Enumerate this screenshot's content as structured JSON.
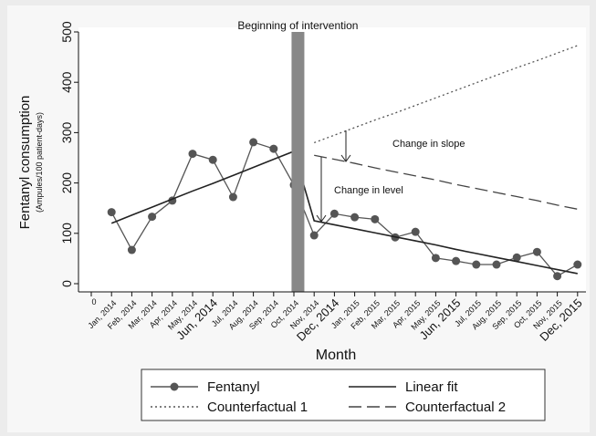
{
  "chart_data": {
    "type": "line",
    "y_label": "Fentanyl consumption",
    "y_sublabel": "(Ampules/100 patient-days)",
    "x_label": "Month",
    "categories": [
      "0",
      "Jan, 2014",
      "Feb, 2014",
      "Mar, 2014",
      "Apr, 2014",
      "May, 2014",
      "Jun, 2014",
      "Jul, 2014",
      "Aug, 2014",
      "Sep, 2014",
      "Oct, 2014",
      "Nov, 2014",
      "Dec, 2014",
      "Jan, 2015",
      "Feb, 2015",
      "Mar, 2015",
      "Apr, 2015",
      "May, 2015",
      "Jun, 2015",
      "Jul, 2015",
      "Aug, 2015",
      "Sep, 2015",
      "Oct, 2015",
      "Nov, 2015",
      "Dec, 2015"
    ],
    "series": [
      {
        "name": "Fentanyl",
        "color": "#555555",
        "style": "marker",
        "values": [
          null,
          142,
          67,
          133,
          165,
          258,
          246,
          172,
          281,
          268,
          196,
          96,
          139,
          132,
          128,
          92,
          103,
          51,
          45,
          38,
          38,
          52,
          63,
          15,
          38
        ]
      },
      {
        "name": "Linear fit",
        "color": "#222222",
        "style": "solid",
        "values": [
          null,
          120,
          136,
          152,
          168,
          184,
          199,
          215,
          231,
          247,
          263,
          125,
          117,
          109,
          101,
          93,
          85,
          77,
          68,
          60,
          52,
          44,
          36,
          28,
          20
        ]
      },
      {
        "name": "Counterfactual 1",
        "color": "#555555",
        "style": "dotted",
        "values": [
          null,
          null,
          null,
          null,
          null,
          null,
          null,
          null,
          null,
          null,
          null,
          280,
          295,
          310,
          325,
          339,
          354,
          369,
          384,
          399,
          414,
          429,
          443,
          458,
          473
        ]
      },
      {
        "name": "Counterfactual 2",
        "color": "#444444",
        "style": "dashed",
        "values": [
          null,
          null,
          null,
          null,
          null,
          null,
          null,
          null,
          null,
          null,
          null,
          255,
          247,
          239,
          230,
          222,
          214,
          206,
          197,
          189,
          181,
          173,
          165,
          156,
          148
        ]
      }
    ],
    "intervention": {
      "label": "Beginning of intervention",
      "x": 10.2
    },
    "annotations": [
      "Change in slope",
      "Change in level"
    ],
    "ylim": [
      0,
      500
    ],
    "yticks": [
      0,
      100,
      200,
      300,
      400,
      500
    ],
    "legend": "bottom"
  }
}
